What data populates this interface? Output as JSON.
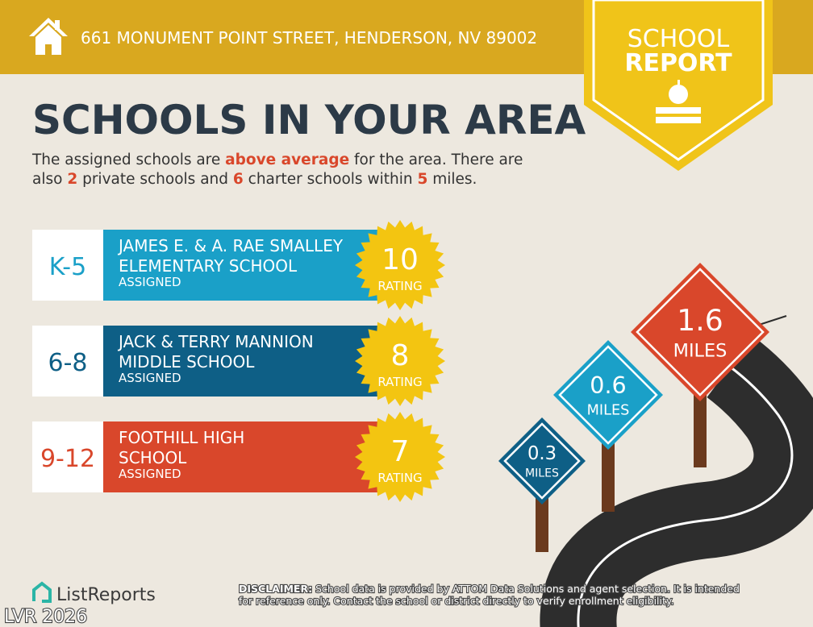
{
  "header": {
    "address": "661 MONUMENT POINT STREET, HENDERSON, NV 89002",
    "badge_top": "SCHOOL",
    "badge_bottom": "REPORT"
  },
  "title": "SCHOOLS IN YOUR AREA",
  "summary": [
    [
      {
        "text": "The assigned schools are "
      },
      {
        "text": "above average",
        "emphasis": true
      },
      {
        "text": " for the area. There are"
      }
    ],
    [
      {
        "text": "also "
      },
      {
        "text": 2,
        "emphasis": true
      },
      {
        "text": " private schools and "
      },
      {
        "text": 6,
        "emphasis": true
      },
      {
        "text": " charter schools within "
      },
      {
        "text": 5,
        "emphasis": true
      },
      {
        "text": " miles."
      }
    ]
  ],
  "schools": [
    {
      "grades": "K-5",
      "name": [
        "JAMES E. & A. RAE SMALLEY",
        "ELEMENTARY SCHOOL"
      ],
      "status": "ASSIGNED",
      "rating": 10,
      "rating_label": "RATING",
      "color": "#1aa0c8"
    },
    {
      "grades": "6-8",
      "name": [
        "JACK & TERRY MANNION",
        "MIDDLE SCHOOL"
      ],
      "status": "ASSIGNED",
      "rating": 8,
      "rating_label": "RATING",
      "color": "#0e5f86"
    },
    {
      "grades": "9-12",
      "name": [
        "FOOTHILL HIGH",
        "SCHOOL"
      ],
      "status": "ASSIGNED",
      "rating": 7,
      "rating_label": "RATING",
      "color": "#d9472b"
    }
  ],
  "signs": [
    {
      "distance": 0.3,
      "unit": "MILES",
      "color": "#0e5f86"
    },
    {
      "distance": 0.6,
      "unit": "MILES",
      "color": "#1aa0c8"
    },
    {
      "distance": 1.6,
      "unit": "MILES",
      "color": "#d9472b"
    }
  ],
  "footer": {
    "brand": "ListReports",
    "disclaimer_label": "DISCLAIMER:",
    "disclaimer": [
      "School data is provided by ATTOM Data Solutions and agent selection. It is intended",
      "for reference only. Contact the school or district directly to verify enrollment eligibility."
    ],
    "watermark": "LVR 2026"
  }
}
